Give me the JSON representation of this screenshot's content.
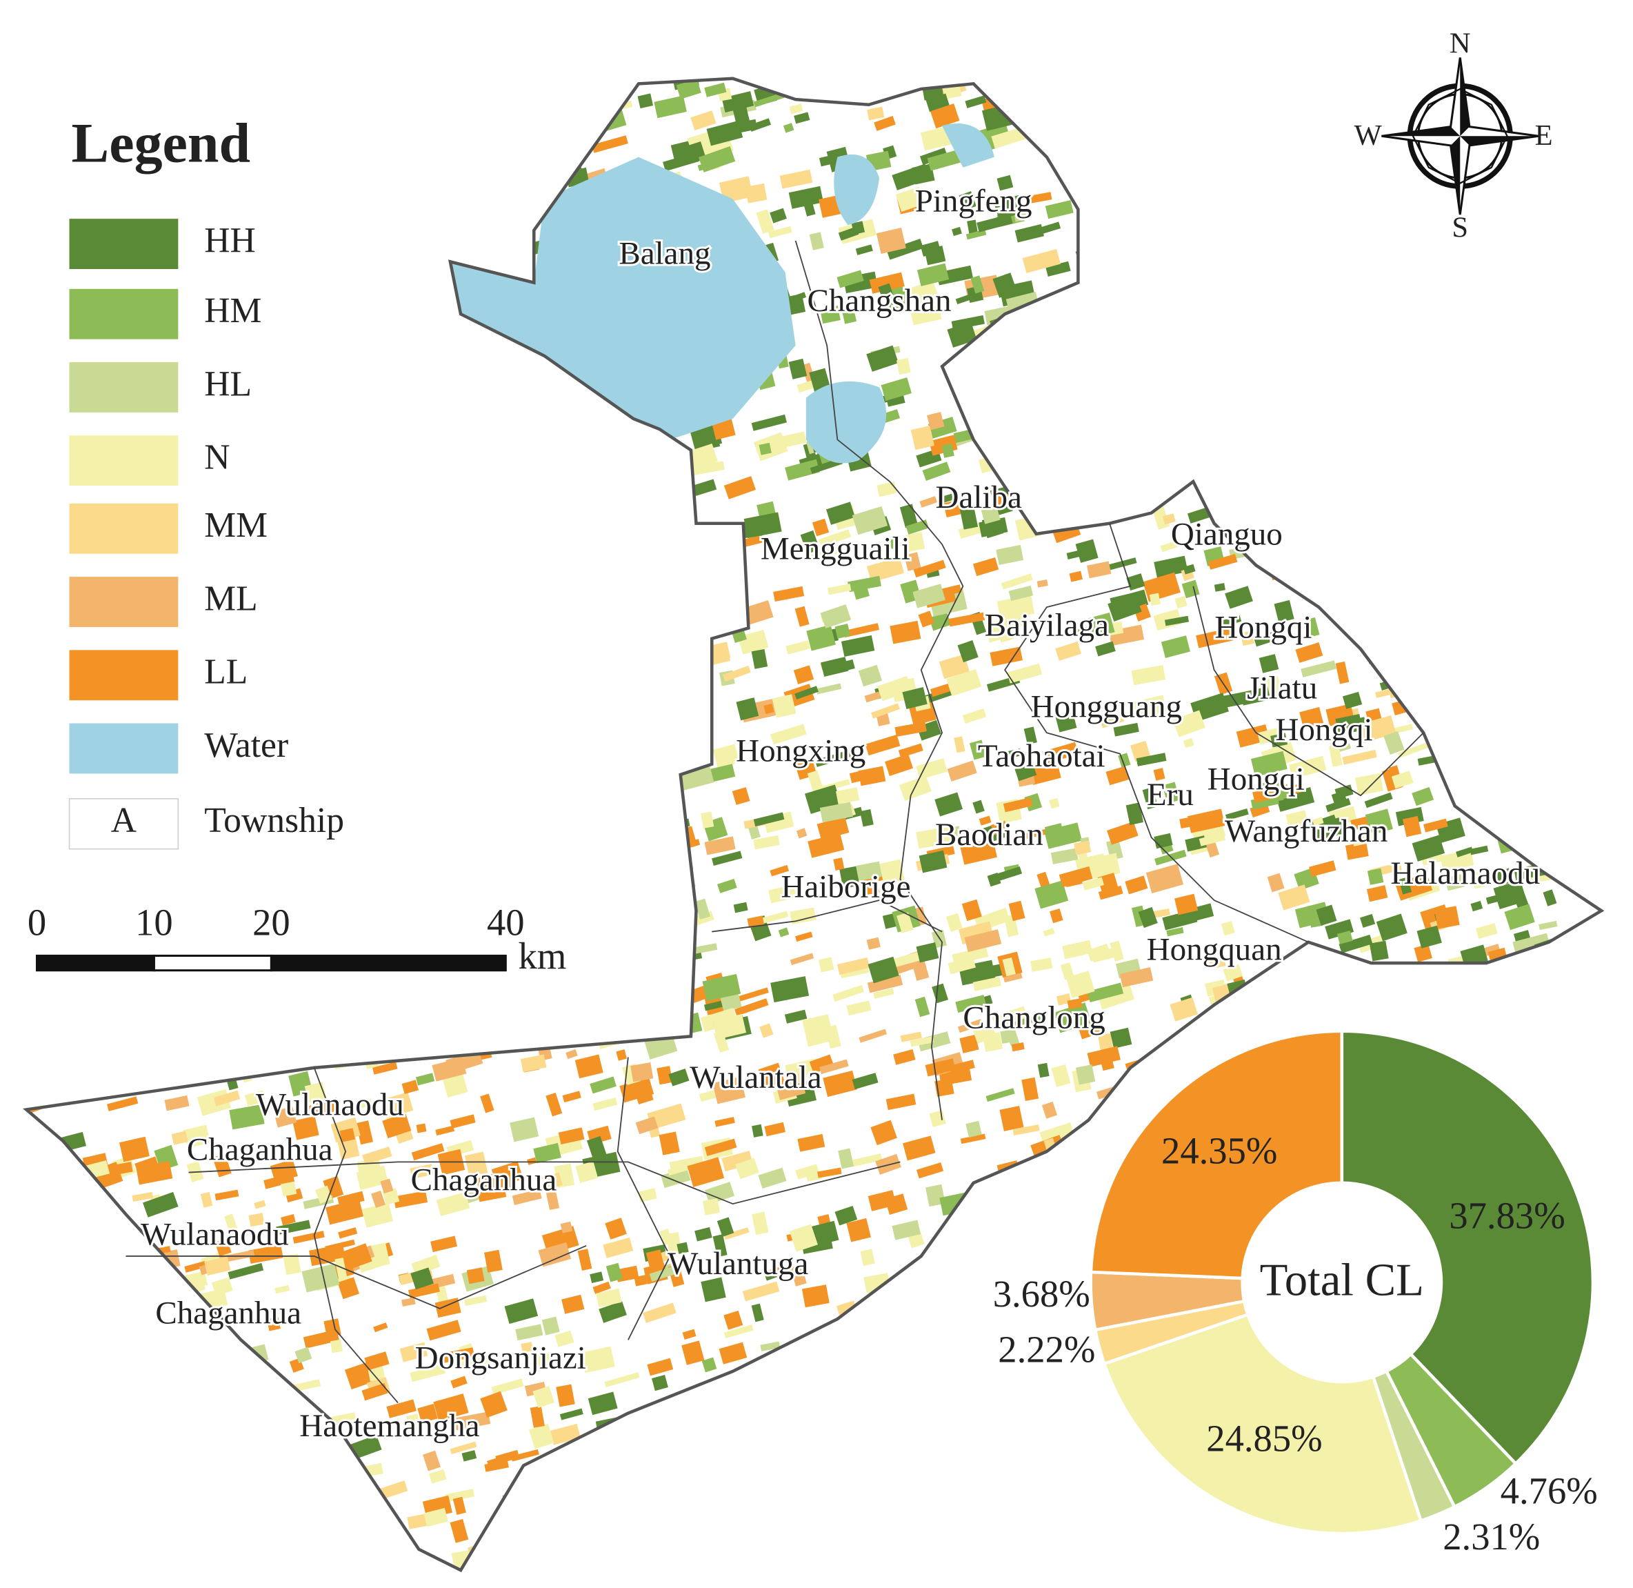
{
  "legend": {
    "title": "Legend",
    "items": [
      {
        "label": "HH",
        "color": "#5a8a36"
      },
      {
        "label": "HM",
        "color": "#8dbb55"
      },
      {
        "label": "HL",
        "color": "#c8da94"
      },
      {
        "label": "N",
        "color": "#f4f1aa"
      },
      {
        "label": "MM",
        "color": "#fcda8c"
      },
      {
        "label": "ML",
        "color": "#f3b46c"
      },
      {
        "label": "LL",
        "color": "#f39325"
      },
      {
        "label": "Water",
        "color": "#9fd3e3"
      }
    ],
    "township": {
      "symbol": "A",
      "label": "Township"
    }
  },
  "townships": [
    "Pingfeng",
    "Balang",
    "Changshan",
    "Daliba",
    "Qianguo",
    "Mengguaili",
    "Baiyilaga",
    "Hongqi",
    "Jilatu",
    "Hongguang",
    "Hongqi",
    "Hongxing",
    "Taohaotai",
    "Eru",
    "Hongqi",
    "Baodian",
    "Wangfuzhan",
    "Halamaodu",
    "Haiborige",
    "Hongquan",
    "Changlong",
    "Wulantala",
    "Wulanaodu",
    "Chaganhua",
    "Chaganhua",
    "Wulanaodu",
    "Wulantuga",
    "Chaganhua",
    "Dongsanjiazi",
    "Haotemangha"
  ],
  "scale_bar": {
    "ticks": [
      0,
      10,
      20,
      40
    ],
    "unit": "km"
  },
  "compass": {
    "north": "N",
    "south": "S",
    "west": "W",
    "east": "E"
  },
  "chart_data": {
    "type": "pie",
    "title": "Total CL",
    "values": [
      37.83,
      4.76,
      2.31,
      24.85,
      2.22,
      3.68,
      24.35
    ],
    "value_labels": [
      "37.83%",
      "4.76%",
      "2.31%",
      "24.85%",
      "2.22%",
      "3.68%",
      "24.35%"
    ],
    "colors": [
      "#5a8a36",
      "#8dbb55",
      "#c8da94",
      "#f4f1aa",
      "#fcda8c",
      "#f3b46c",
      "#f39325"
    ]
  }
}
